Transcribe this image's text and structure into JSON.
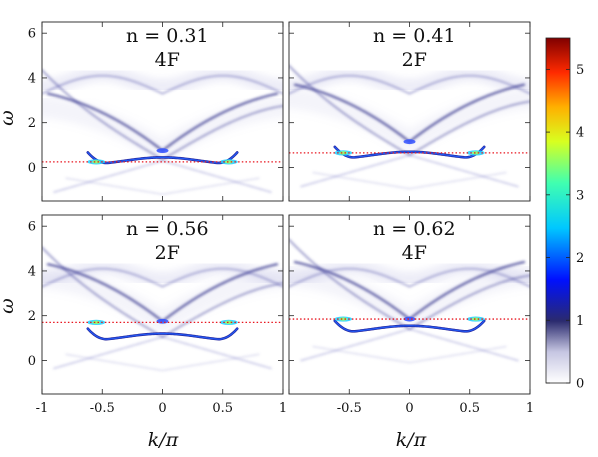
{
  "chart_data": {
    "type": "heatmap",
    "xlabel": "k/π",
    "ylabel": "ω",
    "xlim": [
      -1,
      1
    ],
    "ylim": [
      -1.5,
      6.5
    ],
    "x_ticks": [
      "-1",
      "-0.5",
      "0",
      "0.5",
      "1"
    ],
    "y_ticks": [
      "6",
      "4",
      "2",
      "0"
    ],
    "colormap": "jet",
    "colorbar": {
      "ticks": [
        "5",
        "4",
        "3",
        "2",
        "1",
        "0"
      ],
      "range": [
        0,
        5.5
      ]
    },
    "dotted_line_color": "#e8141e",
    "panels": [
      {
        "label": "n = 0.31",
        "sublabel": "4F",
        "fermi_omega": 0.25,
        "v_bottom": 0.35,
        "v_top": 0.75,
        "flat_band": 0.3
      },
      {
        "label": "n = 0.41",
        "sublabel": "2F",
        "fermi_omega": 0.65,
        "v_bottom": 0.55,
        "v_top": 1.15,
        "flat_band": 0.55
      },
      {
        "label": "n = 0.56",
        "sublabel": "2F",
        "fermi_omega": 1.7,
        "v_bottom": 1.05,
        "v_top": 1.75,
        "flat_band": 1.05
      },
      {
        "label": "n = 0.62",
        "sublabel": "4F",
        "fermi_omega": 1.85,
        "v_bottom": 1.4,
        "v_top": 1.85,
        "flat_band": 1.4
      }
    ]
  }
}
